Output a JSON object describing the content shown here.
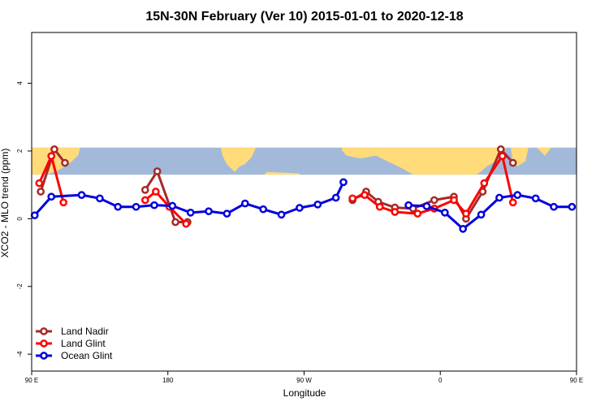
{
  "chart_data": {
    "type": "line",
    "title": "15N-30N February (Ver 10)   2015-01-01 to 2020-12-18",
    "xlabel": "Longitude",
    "ylabel": "XCO2 - MLO trend (ppm)",
    "xlim": [
      -180,
      180
    ],
    "ylim": [
      -4.5,
      5.5
    ],
    "x_ticks": [
      {
        "value": -180,
        "label": "90 E"
      },
      {
        "value": -90,
        "label": "180"
      },
      {
        "value": 0,
        "label": "90 W"
      },
      {
        "value": 90,
        "label": "0"
      },
      {
        "value": 180,
        "label": "90 E"
      },
      {
        "value": 270,
        "label": "180"
      }
    ],
    "y_ticks": [
      {
        "value": -4,
        "label": "-4"
      },
      {
        "value": -2,
        "label": "-2"
      },
      {
        "value": 0,
        "label": "0"
      },
      {
        "value": 2,
        "label": "2"
      },
      {
        "value": 4,
        "label": "4"
      }
    ],
    "map_band": {
      "ymin": 1.3,
      "ymax": 2.1,
      "ocean_color": "#a3b9d9",
      "land_color": "#ffdb7a"
    },
    "legend_position": "bottom-left",
    "series": [
      {
        "name": "Land Nadir",
        "color": "#a52a2a",
        "segments": [
          [
            [
              -174,
              0.8
            ],
            [
              -165,
              2.05
            ],
            [
              -158,
              1.65
            ]
          ],
          [
            [
              -105,
              0.85
            ],
            [
              -97,
              1.4
            ],
            [
              -85,
              -0.1
            ],
            [
              -77,
              -0.1
            ]
          ],
          [
            [
              32,
              0.55
            ],
            [
              41,
              0.8
            ],
            [
              49,
              0.5
            ],
            [
              60,
              0.33
            ],
            [
              72,
              0.3
            ],
            [
              86,
              0.55
            ],
            [
              99,
              0.65
            ],
            [
              107,
              0.0
            ],
            [
              118,
              0.8
            ],
            [
              130,
              2.05
            ],
            [
              138,
              1.65
            ]
          ]
        ]
      },
      {
        "name": "Land Glint",
        "color": "#ff0000",
        "segments": [
          [
            [
              -175,
              1.05
            ],
            [
              -167,
              1.85
            ],
            [
              -159,
              0.48
            ]
          ],
          [
            [
              -105,
              0.55
            ],
            [
              -98,
              0.8
            ],
            [
              -89,
              0.35
            ],
            [
              -78,
              -0.15
            ]
          ],
          [
            [
              32,
              0.6
            ],
            [
              40,
              0.7
            ],
            [
              50,
              0.35
            ],
            [
              60,
              0.2
            ],
            [
              75,
              0.15
            ],
            [
              86,
              0.3
            ],
            [
              99,
              0.55
            ],
            [
              107,
              0.15
            ],
            [
              119,
              1.05
            ],
            [
              131,
              1.85
            ],
            [
              138,
              0.48
            ]
          ]
        ]
      },
      {
        "name": "Ocean Glint",
        "color": "#0000dd",
        "segments": [
          [
            [
              -178,
              0.1
            ],
            [
              -167,
              0.65
            ],
            [
              -147,
              0.7
            ],
            [
              -135,
              0.6
            ],
            [
              -123,
              0.35
            ],
            [
              -111,
              0.35
            ],
            [
              -99,
              0.4
            ],
            [
              -87,
              0.38
            ],
            [
              -75,
              0.18
            ],
            [
              -63,
              0.22
            ],
            [
              -51,
              0.15
            ],
            [
              -39,
              0.45
            ],
            [
              -27,
              0.28
            ],
            [
              -15,
              0.12
            ],
            [
              -3,
              0.32
            ],
            [
              9,
              0.42
            ],
            [
              21,
              0.62
            ],
            [
              26,
              1.08
            ]
          ],
          [
            [
              69,
              0.4
            ],
            [
              81,
              0.37
            ],
            [
              93,
              0.18
            ],
            [
              105,
              -0.3
            ],
            [
              117,
              0.12
            ],
            [
              129,
              0.62
            ],
            [
              141,
              0.7
            ],
            [
              153,
              0.6
            ],
            [
              165,
              0.35
            ],
            [
              177,
              0.35
            ]
          ]
        ]
      }
    ]
  }
}
